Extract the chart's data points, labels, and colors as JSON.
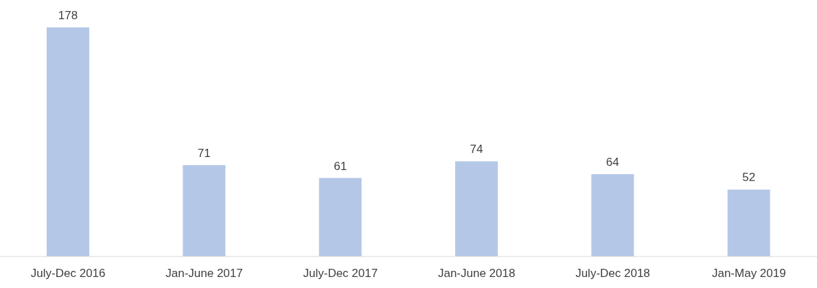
{
  "chart_data": {
    "type": "bar",
    "categories": [
      "July-Dec 2016",
      "Jan-June 2017",
      "July-Dec 2017",
      "Jan-June 2018",
      "July-Dec 2018",
      "Jan-May 2019"
    ],
    "values": [
      178,
      71,
      61,
      74,
      64,
      52
    ],
    "color": "#b4c7e7",
    "data_labels": true
  }
}
